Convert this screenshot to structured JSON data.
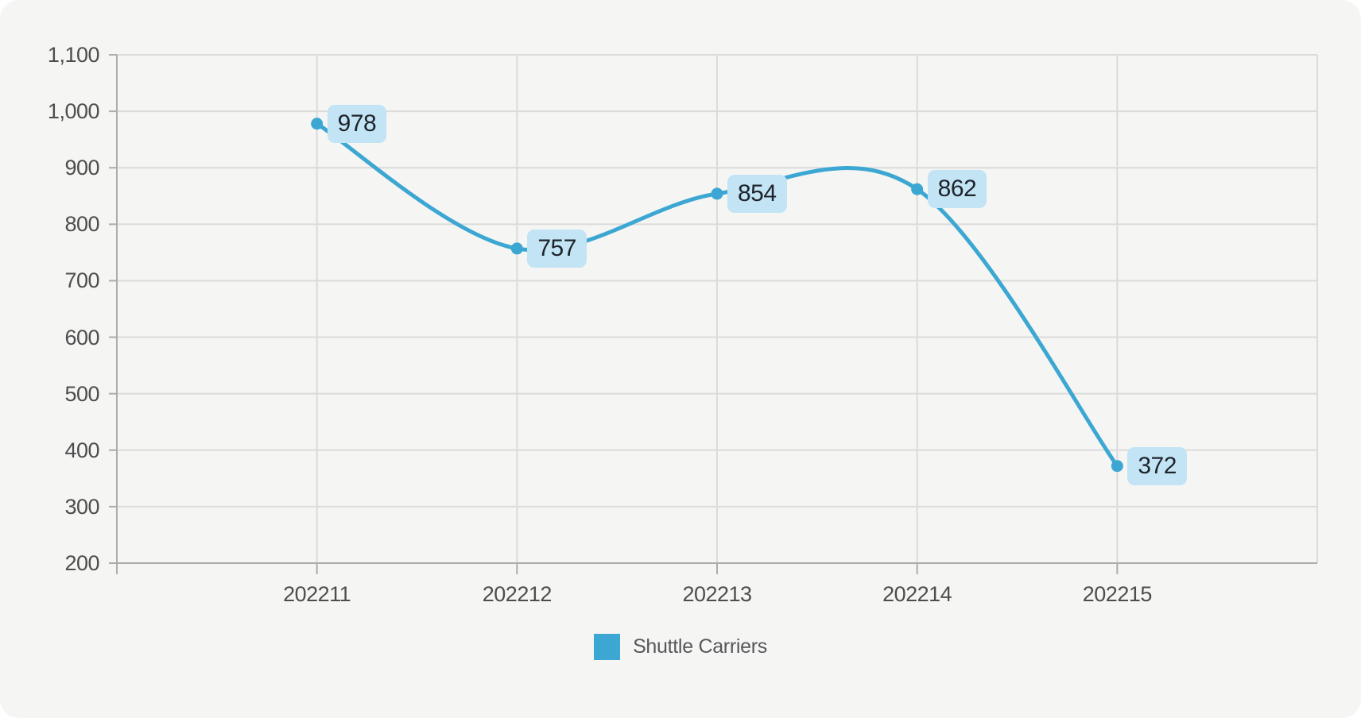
{
  "chart_data": {
    "type": "line",
    "title": "",
    "xlabel": "",
    "ylabel": "",
    "categories": [
      "202211",
      "202212",
      "202213",
      "202214",
      "202215"
    ],
    "series": [
      {
        "name": "Shuttle Carriers",
        "values": [
          978,
          757,
          854,
          862,
          372
        ]
      }
    ],
    "ylim": [
      200,
      1100
    ],
    "ytick_step": 100,
    "ytick_labels": [
      "200",
      "300",
      "400",
      "500",
      "600",
      "700",
      "800",
      "900",
      "1,000",
      "1,100"
    ],
    "grid": true,
    "smooth_line": true,
    "data_labels_visible": true,
    "legend_position": "bottom",
    "colors": {
      "series": "#3BA7D2",
      "data_label_bg": "#C2E4F4",
      "data_label_text": "#1E232B",
      "grid_line": "#DBDBDB",
      "axis_line": "#ACACAC",
      "axis_text": "#4D4D4D",
      "legend_text": "#55575A",
      "background": "#F5F5F4"
    }
  }
}
